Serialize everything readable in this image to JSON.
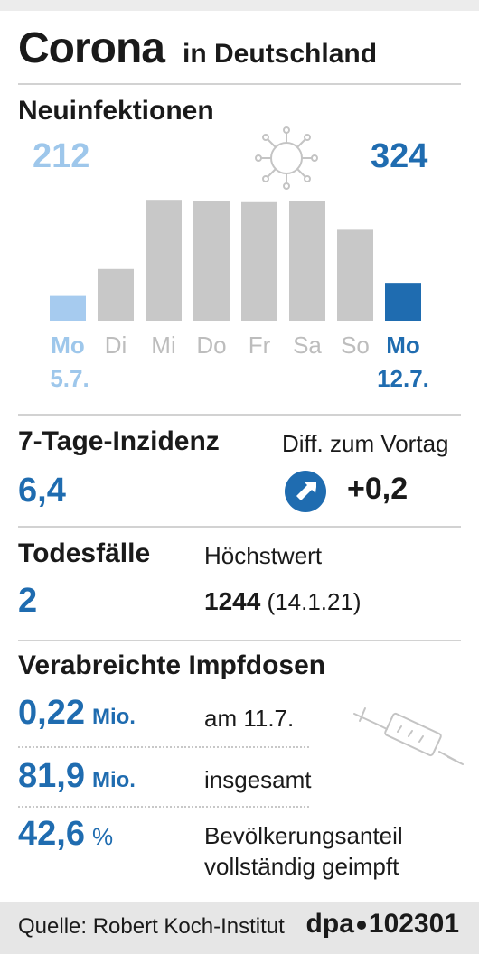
{
  "header": {
    "title": "Corona",
    "subtitle": "in Deutschland"
  },
  "infections": {
    "heading": "Neuinfektionen",
    "first_value": "212",
    "last_value": "324",
    "icon": "virus-icon"
  },
  "chart_data": {
    "type": "bar",
    "categories": [
      "Mo",
      "Di",
      "Mi",
      "Do",
      "Fr",
      "Sa",
      "So",
      "Mo"
    ],
    "values": [
      212,
      443,
      1036,
      1026,
      1016,
      1023,
      779,
      324
    ],
    "first_date": "5.7.",
    "last_date": "12.7.",
    "ylim": [
      0,
      1200
    ],
    "colors": {
      "first": "#a6cbef",
      "middle": "#c8c8c8",
      "last": "#1f6cb0"
    },
    "grid": false
  },
  "incidence": {
    "heading": "7-Tage-Inzidenz",
    "value": "6,4",
    "diff_label": "Diff. zum Vortag",
    "diff_value": "+0,2",
    "arrow_icon": "arrow-up-right-icon"
  },
  "deaths": {
    "heading": "Todesfälle",
    "value": "2",
    "max_label": "Höchstwert",
    "max_value": "1244",
    "max_date": "(14.1.21)"
  },
  "vaccination": {
    "heading": "Verabreichte Impfdosen",
    "rows": [
      {
        "value": "0,22",
        "unit": "Mio.",
        "label": "am 11.7."
      },
      {
        "value": "81,9",
        "unit": "Mio.",
        "label": "insgesamt"
      },
      {
        "value": "42,6",
        "unit": "%",
        "label": "Bevölkerungsanteil",
        "label2": "vollständig geimpft"
      }
    ],
    "icon": "syringe-icon"
  },
  "footer": {
    "source": "Quelle: Robert Koch-Institut",
    "agency": "dpa",
    "id": "102301"
  }
}
